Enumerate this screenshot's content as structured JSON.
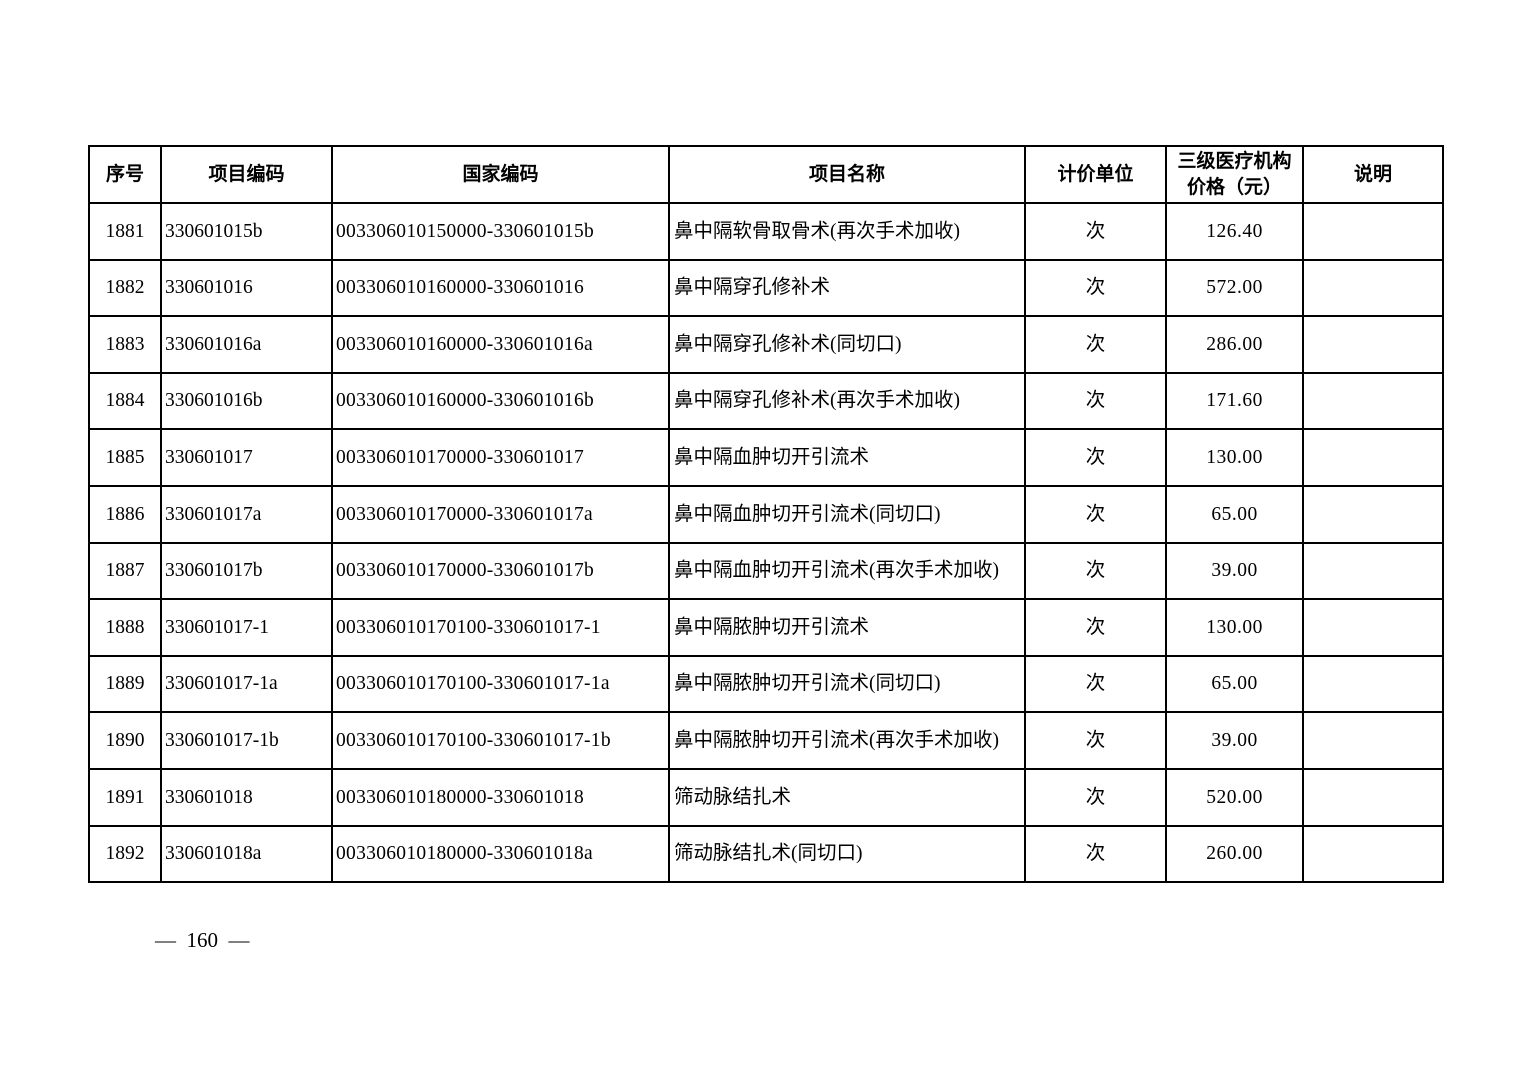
{
  "document": {
    "footer": {
      "page_number_display": "—  160  —",
      "page_number": "160"
    }
  },
  "table": {
    "headers": {
      "seq": "序号",
      "project_code": "项目编码",
      "national_code": "国家编码",
      "project_name": "项目名称",
      "unit": "计价单位",
      "price_tier3": "三级医疗机构\n价格（元）",
      "note": "说明"
    },
    "rows": [
      {
        "seq": "1881",
        "project_code": "330601015b",
        "national_code": "003306010150000-330601015b",
        "project_name": "鼻中隔软骨取骨术(再次手术加收)",
        "unit": "次",
        "price": "126.40",
        "note": ""
      },
      {
        "seq": "1882",
        "project_code": "330601016",
        "national_code": "003306010160000-330601016",
        "project_name": "鼻中隔穿孔修补术",
        "unit": "次",
        "price": "572.00",
        "note": ""
      },
      {
        "seq": "1883",
        "project_code": "330601016a",
        "national_code": "003306010160000-330601016a",
        "project_name": "鼻中隔穿孔修补术(同切口)",
        "unit": "次",
        "price": "286.00",
        "note": ""
      },
      {
        "seq": "1884",
        "project_code": "330601016b",
        "national_code": "003306010160000-330601016b",
        "project_name": "鼻中隔穿孔修补术(再次手术加收)",
        "unit": "次",
        "price": "171.60",
        "note": ""
      },
      {
        "seq": "1885",
        "project_code": "330601017",
        "national_code": "003306010170000-330601017",
        "project_name": "鼻中隔血肿切开引流术",
        "unit": "次",
        "price": "130.00",
        "note": ""
      },
      {
        "seq": "1886",
        "project_code": "330601017a",
        "national_code": "003306010170000-330601017a",
        "project_name": "鼻中隔血肿切开引流术(同切口)",
        "unit": "次",
        "price": "65.00",
        "note": ""
      },
      {
        "seq": "1887",
        "project_code": "330601017b",
        "national_code": "003306010170000-330601017b",
        "project_name": "鼻中隔血肿切开引流术(再次手术加收)",
        "unit": "次",
        "price": "39.00",
        "note": ""
      },
      {
        "seq": "1888",
        "project_code": "330601017-1",
        "national_code": "003306010170100-330601017-1",
        "project_name": "鼻中隔脓肿切开引流术",
        "unit": "次",
        "price": "130.00",
        "note": ""
      },
      {
        "seq": "1889",
        "project_code": "330601017-1a",
        "national_code": "003306010170100-330601017-1a",
        "project_name": "鼻中隔脓肿切开引流术(同切口)",
        "unit": "次",
        "price": "65.00",
        "note": ""
      },
      {
        "seq": "1890",
        "project_code": "330601017-1b",
        "national_code": "003306010170100-330601017-1b",
        "project_name": "鼻中隔脓肿切开引流术(再次手术加收)",
        "unit": "次",
        "price": "39.00",
        "note": ""
      },
      {
        "seq": "1891",
        "project_code": "330601018",
        "national_code": "003306010180000-330601018",
        "project_name": "筛动脉结扎术",
        "unit": "次",
        "price": "520.00",
        "note": ""
      },
      {
        "seq": "1892",
        "project_code": "330601018a",
        "national_code": "003306010180000-330601018a",
        "project_name": "筛动脉结扎术(同切口)",
        "unit": "次",
        "price": "260.00",
        "note": ""
      }
    ]
  }
}
